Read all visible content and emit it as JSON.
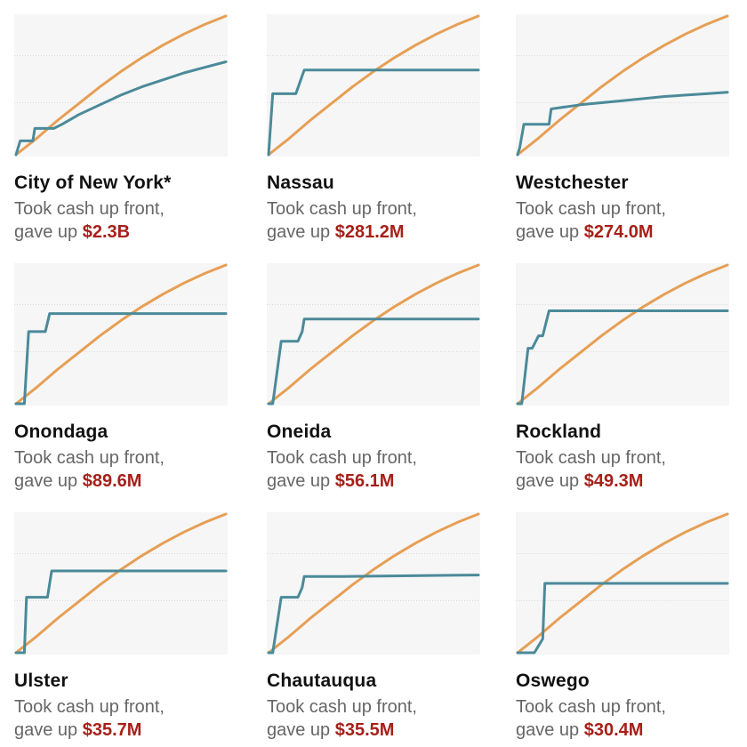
{
  "colors": {
    "plot_background": "#f6f6f6",
    "gridline": "#d9d9d9",
    "orange_line": "#e69f55",
    "teal_line": "#4b8a99",
    "amount_text": "#a62019",
    "body_text": "#666666",
    "title_text": "#111111"
  },
  "panels": [
    {
      "name": "City of New York*",
      "line1": "Took cash up front,",
      "prefix": "gave up",
      "amount": "$2.3B"
    },
    {
      "name": "Nassau",
      "line1": "Took cash up front,",
      "prefix": "gave up",
      "amount": "$281.2M"
    },
    {
      "name": "Westchester",
      "line1": "Took cash up front,",
      "prefix": "gave up",
      "amount": "$274.0M"
    },
    {
      "name": "Onondaga",
      "line1": "Took cash up front,",
      "prefix": "gave up",
      "amount": "$89.6M"
    },
    {
      "name": "Oneida",
      "line1": "Took cash up front,",
      "prefix": "gave up",
      "amount": "$56.1M"
    },
    {
      "name": "Rockland",
      "line1": "Took cash up front,",
      "prefix": "gave up",
      "amount": "$49.3M"
    },
    {
      "name": "Ulster",
      "line1": "Took cash up front,",
      "prefix": "gave up",
      "amount": "$35.7M"
    },
    {
      "name": "Chautauqua",
      "line1": "Took cash up front,",
      "prefix": "gave up",
      "amount": "$35.5M"
    },
    {
      "name": "Oswego",
      "line1": "Took cash up front,",
      "prefix": "gave up",
      "amount": "$30.4M"
    }
  ],
  "chart_data": {
    "type": "line",
    "layout": "small-multiples 3x3",
    "xlim": [
      0,
      1
    ],
    "ylim": [
      0,
      1
    ],
    "grid": "horizontal",
    "x_tick_labels": [],
    "y_tick_labels": [],
    "panels": [
      {
        "county": "City of New York*",
        "series": [
          {
            "color": "orange",
            "x": [
              0,
              0.1,
              0.2,
              0.3,
              0.4,
              0.5,
              0.6,
              0.7,
              0.8,
              0.9,
              1.0
            ],
            "y": [
              0,
              0.12,
              0.25,
              0.37,
              0.49,
              0.6,
              0.7,
              0.79,
              0.87,
              0.94,
              1.0
            ]
          },
          {
            "color": "teal",
            "x": [
              0,
              0.02,
              0.08,
              0.09,
              0.16,
              0.18,
              0.22,
              0.3,
              0.4,
              0.5,
              0.6,
              0.7,
              0.8,
              0.9,
              1.0
            ],
            "y": [
              0,
              0.1,
              0.1,
              0.19,
              0.19,
              0.19,
              0.22,
              0.29,
              0.36,
              0.43,
              0.49,
              0.54,
              0.59,
              0.63,
              0.67
            ]
          }
        ]
      },
      {
        "county": "Nassau",
        "series": [
          {
            "color": "orange",
            "x": [
              0,
              0.1,
              0.2,
              0.3,
              0.4,
              0.5,
              0.6,
              0.7,
              0.8,
              0.9,
              1.0
            ],
            "y": [
              0,
              0.12,
              0.25,
              0.37,
              0.49,
              0.6,
              0.7,
              0.79,
              0.87,
              0.94,
              1.0
            ]
          },
          {
            "color": "teal",
            "x": [
              0,
              0.02,
              0.13,
              0.17,
              1.0
            ],
            "y": [
              0,
              0.44,
              0.44,
              0.61,
              0.61
            ]
          }
        ]
      },
      {
        "county": "Westchester",
        "series": [
          {
            "color": "orange",
            "x": [
              0,
              0.1,
              0.2,
              0.3,
              0.4,
              0.5,
              0.6,
              0.7,
              0.8,
              0.9,
              1.0
            ],
            "y": [
              0,
              0.12,
              0.25,
              0.37,
              0.49,
              0.6,
              0.7,
              0.79,
              0.87,
              0.94,
              1.0
            ]
          },
          {
            "color": "teal",
            "x": [
              0,
              0.01,
              0.03,
              0.15,
              0.16,
              0.3,
              0.5,
              0.7,
              0.9,
              1.0
            ],
            "y": [
              0,
              0.05,
              0.22,
              0.22,
              0.33,
              0.36,
              0.39,
              0.42,
              0.44,
              0.45
            ]
          }
        ]
      },
      {
        "county": "Onondaga",
        "series": [
          {
            "color": "orange",
            "x": [
              0,
              0.1,
              0.2,
              0.3,
              0.4,
              0.5,
              0.6,
              0.7,
              0.8,
              0.9,
              1.0
            ],
            "y": [
              0,
              0.12,
              0.25,
              0.37,
              0.49,
              0.6,
              0.7,
              0.79,
              0.87,
              0.94,
              1.0
            ]
          },
          {
            "color": "teal",
            "x": [
              0,
              0.04,
              0.06,
              0.14,
              0.16,
              1.0
            ],
            "y": [
              0,
              0,
              0.52,
              0.52,
              0.65,
              0.65
            ]
          }
        ]
      },
      {
        "county": "Oneida",
        "series": [
          {
            "color": "orange",
            "x": [
              0,
              0.1,
              0.2,
              0.3,
              0.4,
              0.5,
              0.6,
              0.7,
              0.8,
              0.9,
              1.0
            ],
            "y": [
              0,
              0.12,
              0.25,
              0.37,
              0.49,
              0.6,
              0.7,
              0.79,
              0.87,
              0.94,
              1.0
            ]
          },
          {
            "color": "teal",
            "x": [
              0,
              0.02,
              0.06,
              0.14,
              0.16,
              0.17,
              1.0
            ],
            "y": [
              0,
              0,
              0.45,
              0.45,
              0.52,
              0.61,
              0.61
            ]
          }
        ]
      },
      {
        "county": "Rockland",
        "series": [
          {
            "color": "orange",
            "x": [
              0,
              0.1,
              0.2,
              0.3,
              0.4,
              0.5,
              0.6,
              0.7,
              0.8,
              0.9,
              1.0
            ],
            "y": [
              0,
              0.12,
              0.25,
              0.37,
              0.49,
              0.6,
              0.7,
              0.79,
              0.87,
              0.94,
              1.0
            ]
          },
          {
            "color": "teal",
            "x": [
              0,
              0.02,
              0.05,
              0.07,
              0.1,
              0.12,
              0.15,
              1.0
            ],
            "y": [
              0,
              0,
              0.4,
              0.4,
              0.49,
              0.49,
              0.67,
              0.67
            ]
          }
        ]
      },
      {
        "county": "Ulster",
        "series": [
          {
            "color": "orange",
            "x": [
              0,
              0.1,
              0.2,
              0.3,
              0.4,
              0.5,
              0.6,
              0.7,
              0.8,
              0.9,
              1.0
            ],
            "y": [
              0,
              0.12,
              0.25,
              0.37,
              0.49,
              0.6,
              0.7,
              0.79,
              0.87,
              0.94,
              1.0
            ]
          },
          {
            "color": "teal",
            "x": [
              0,
              0.04,
              0.05,
              0.15,
              0.17,
              1.0
            ],
            "y": [
              0,
              0,
              0.4,
              0.4,
              0.59,
              0.59
            ]
          }
        ]
      },
      {
        "county": "Chautauqua",
        "series": [
          {
            "color": "orange",
            "x": [
              0,
              0.1,
              0.2,
              0.3,
              0.4,
              0.5,
              0.6,
              0.7,
              0.8,
              0.9,
              1.0
            ],
            "y": [
              0,
              0.12,
              0.25,
              0.37,
              0.49,
              0.6,
              0.7,
              0.79,
              0.87,
              0.94,
              1.0
            ]
          },
          {
            "color": "teal",
            "x": [
              0,
              0.02,
              0.06,
              0.14,
              0.16,
              0.17,
              0.35,
              1.0
            ],
            "y": [
              0,
              0,
              0.4,
              0.4,
              0.47,
              0.55,
              0.55,
              0.56
            ]
          }
        ]
      },
      {
        "county": "Oswego",
        "series": [
          {
            "color": "orange",
            "x": [
              0,
              0.1,
              0.2,
              0.3,
              0.4,
              0.5,
              0.6,
              0.7,
              0.8,
              0.9,
              1.0
            ],
            "y": [
              0,
              0.12,
              0.25,
              0.37,
              0.49,
              0.6,
              0.7,
              0.79,
              0.87,
              0.94,
              1.0
            ]
          },
          {
            "color": "teal",
            "x": [
              0,
              0.08,
              0.12,
              0.13,
              1.0
            ],
            "y": [
              0,
              0,
              0.1,
              0.5,
              0.5
            ]
          }
        ]
      }
    ]
  }
}
